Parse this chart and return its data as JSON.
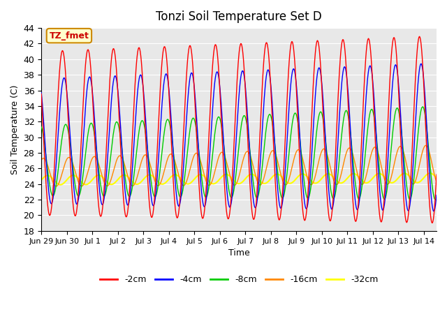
{
  "title": "Tonzi Soil Temperature Set D",
  "xlabel": "Time",
  "ylabel": "Soil Temperature (C)",
  "ylim": [
    18,
    44
  ],
  "yticks": [
    18,
    20,
    22,
    24,
    26,
    28,
    30,
    32,
    34,
    36,
    38,
    40,
    42,
    44
  ],
  "legend_labels": [
    "-2cm",
    "-4cm",
    "-8cm",
    "-16cm",
    "-32cm"
  ],
  "legend_colors": [
    "#ff0000",
    "#0000ff",
    "#00cc00",
    "#ff8800",
    "#ffff00"
  ],
  "annotation_text": "TZ_fmet",
  "annotation_bg": "#ffffcc",
  "annotation_border": "#cc8800",
  "plot_bg": "#e8e8e8",
  "n_points": 744,
  "n_days": 15.5,
  "tick_labels": [
    "Jun 29",
    "Jun 30",
    "Jul 1",
    "Jul 2",
    "Jul 3",
    "Jul 4",
    "Jul 5",
    "Jul 6",
    "Jul 7",
    "Jul 8",
    "Jul 9",
    "Jul 10",
    "Jul 11",
    "Jul 12",
    "Jul 13",
    "Jul 14"
  ]
}
